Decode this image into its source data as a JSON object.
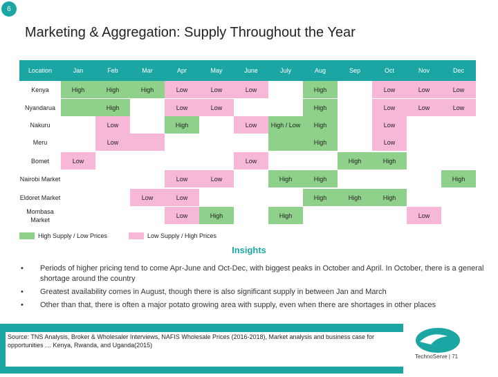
{
  "slide_number": "6",
  "title": "Marketing & Aggregation: Supply Throughout the Year",
  "colors": {
    "accent": "#1ba6a3",
    "high_supply": "#8fd08a",
    "low_supply": "#f6b8d6"
  },
  "table": {
    "location_header": "Location",
    "months": [
      "Jan",
      "Feb",
      "Mar",
      "Apr",
      "May",
      "June",
      "July",
      "Aug",
      "Sep",
      "Oct",
      "Nov",
      "Dec"
    ],
    "rows": [
      {
        "location": "Kenya",
        "cells": [
          [
            "High",
            "g"
          ],
          [
            "High",
            "g"
          ],
          [
            "High",
            "g"
          ],
          [
            "Low",
            "p"
          ],
          [
            "Low",
            "p"
          ],
          [
            "Low",
            "p"
          ],
          [
            "",
            ""
          ],
          [
            "High",
            "g"
          ],
          [
            "",
            ""
          ],
          [
            "Low",
            "p"
          ],
          [
            "Low",
            "p"
          ],
          [
            "Low",
            "p"
          ]
        ]
      },
      {
        "location": "Nyandarua",
        "cells": [
          [
            "",
            "g"
          ],
          [
            "High",
            "g"
          ],
          [
            "",
            ""
          ],
          [
            "Low",
            "p"
          ],
          [
            "Low",
            "p"
          ],
          [
            "",
            ""
          ],
          [
            "",
            ""
          ],
          [
            "High",
            "g"
          ],
          [
            "",
            ""
          ],
          [
            "Low",
            "p"
          ],
          [
            "Low",
            "p"
          ],
          [
            "Low",
            "p"
          ]
        ]
      },
      {
        "location": "Nakuru",
        "cells": [
          [
            "",
            ""
          ],
          [
            "Low",
            "p"
          ],
          [
            "",
            ""
          ],
          [
            "High",
            "g"
          ],
          [
            "",
            ""
          ],
          [
            "Low",
            "p"
          ],
          [
            "High / Low",
            "g"
          ],
          [
            "High",
            "g"
          ],
          [
            "",
            ""
          ],
          [
            "Low",
            "p"
          ],
          [
            "",
            ""
          ],
          [
            "",
            ""
          ]
        ]
      },
      {
        "location": "Meru",
        "cells": [
          [
            "",
            ""
          ],
          [
            "Low",
            "p"
          ],
          [
            "",
            "p"
          ],
          [
            "",
            ""
          ],
          [
            "",
            ""
          ],
          [
            "",
            ""
          ],
          [
            "",
            "g"
          ],
          [
            "High",
            "g"
          ],
          [
            "",
            ""
          ],
          [
            "Low",
            "p"
          ],
          [
            "",
            ""
          ],
          [
            "",
            ""
          ]
        ]
      },
      {
        "location": "Bomet",
        "cells": [
          [
            "Low",
            "p"
          ],
          [
            "",
            ""
          ],
          [
            "",
            ""
          ],
          [
            "",
            ""
          ],
          [
            "",
            ""
          ],
          [
            "Low",
            "p"
          ],
          [
            "",
            ""
          ],
          [
            "",
            ""
          ],
          [
            "High",
            "g"
          ],
          [
            "High",
            "g"
          ],
          [
            "",
            ""
          ],
          [
            "",
            ""
          ]
        ]
      },
      {
        "location": "Nairobi Market",
        "cells": [
          [
            "",
            ""
          ],
          [
            "",
            ""
          ],
          [
            "",
            ""
          ],
          [
            "Low",
            "p"
          ],
          [
            "Low",
            "p"
          ],
          [
            "",
            ""
          ],
          [
            "High",
            "g"
          ],
          [
            "High",
            "g"
          ],
          [
            "",
            ""
          ],
          [
            "",
            ""
          ],
          [
            "",
            ""
          ],
          [
            "High",
            "g"
          ]
        ]
      },
      {
        "location": "Eldoret Market",
        "cells": [
          [
            "",
            ""
          ],
          [
            "",
            ""
          ],
          [
            "Low",
            "p"
          ],
          [
            "Low",
            "p"
          ],
          [
            "",
            ""
          ],
          [
            "",
            ""
          ],
          [
            "",
            ""
          ],
          [
            "High",
            "g"
          ],
          [
            "High",
            "g"
          ],
          [
            "High",
            "g"
          ],
          [
            "",
            ""
          ],
          [
            "",
            ""
          ]
        ]
      },
      {
        "location": "Mombasa Market",
        "cells": [
          [
            "",
            ""
          ],
          [
            "",
            ""
          ],
          [
            "",
            ""
          ],
          [
            "Low",
            "p"
          ],
          [
            "High",
            "g"
          ],
          [
            "",
            ""
          ],
          [
            "High",
            "g"
          ],
          [
            "",
            ""
          ],
          [
            "",
            ""
          ],
          [
            "",
            ""
          ],
          [
            "Low",
            "p"
          ],
          [
            "",
            ""
          ]
        ]
      }
    ]
  },
  "legend": {
    "high": "High Supply / Low Prices",
    "low": "Low Supply / High Prices"
  },
  "insights": {
    "title": "Insights",
    "bullets": [
      "Periods of higher pricing tend to come Apr-June and Oct-Dec, with biggest peaks in October and April. In October, there is a general shortage around the country",
      "Greatest availability comes in August, though there is also significant supply in between Jan and March",
      "Other than that, there is often a major potato growing area with supply, even when there are shortages in other places"
    ]
  },
  "source": "Source: TNS Analysis, Broker & Wholesaler Interviews, NAFIS Wholesale Prices (2016-2018), Market analysis and business case for opportunities … Kenya, Rwanda, and Uganda(2015)",
  "brand": "TechnoServe | 71"
}
